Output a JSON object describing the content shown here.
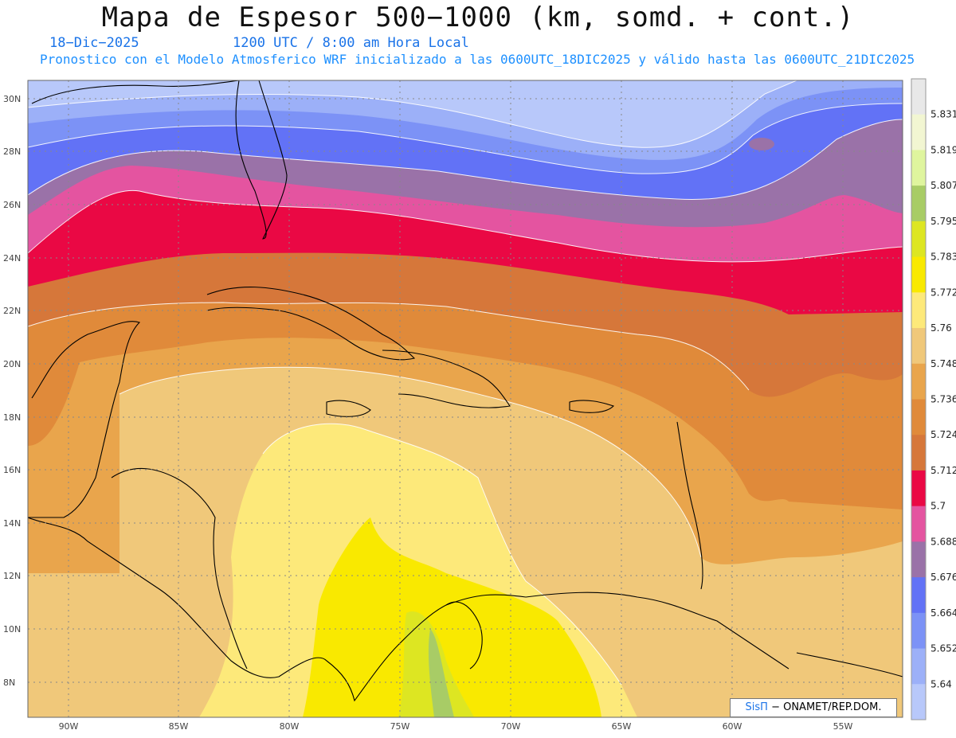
{
  "title": "Mapa de Espesor 500−1000 (km, somd. + cont.)",
  "date": "18−Dic−2025",
  "time": "1200 UTC / 8:00 am Hora Local",
  "description": "Pronostico con el Modelo Atmosferico WRF inicializado a las 0600UTC_18DIC2025 y válido hasta las  0600UTC_21DIC2025",
  "credit": {
    "logo": "SisΠ",
    "text": "− ONAMET/REP.DOM."
  },
  "lat_labels": [
    "30N",
    "28N",
    "26N",
    "24N",
    "22N",
    "20N",
    "18N",
    "16N",
    "14N",
    "12N",
    "10N",
    "8N"
  ],
  "lon_labels": [
    "90W",
    "85W",
    "80W",
    "75W",
    "70W",
    "65W",
    "60W",
    "55W"
  ],
  "colorbar": {
    "levels": [
      "5.831",
      "5.819",
      "5.807",
      "5.795",
      "5.783",
      "5.772",
      "5.76",
      "5.748",
      "5.736",
      "5.724",
      "5.712",
      "5.7",
      "5.688",
      "5.676",
      "5.664",
      "5.652",
      "5.64"
    ],
    "colors": [
      "#e8e8e8",
      "#f2f6d2",
      "#dff59e",
      "#a8cc66",
      "#dde622",
      "#f9e900",
      "#fde97a",
      "#f0c87a",
      "#e9a54c",
      "#e08a3a",
      "#d6773a",
      "#ea0844",
      "#e454a0",
      "#9a72a8",
      "#6272f6",
      "#7c92f6",
      "#9cb0f8",
      "#b8c8fa"
    ]
  }
}
